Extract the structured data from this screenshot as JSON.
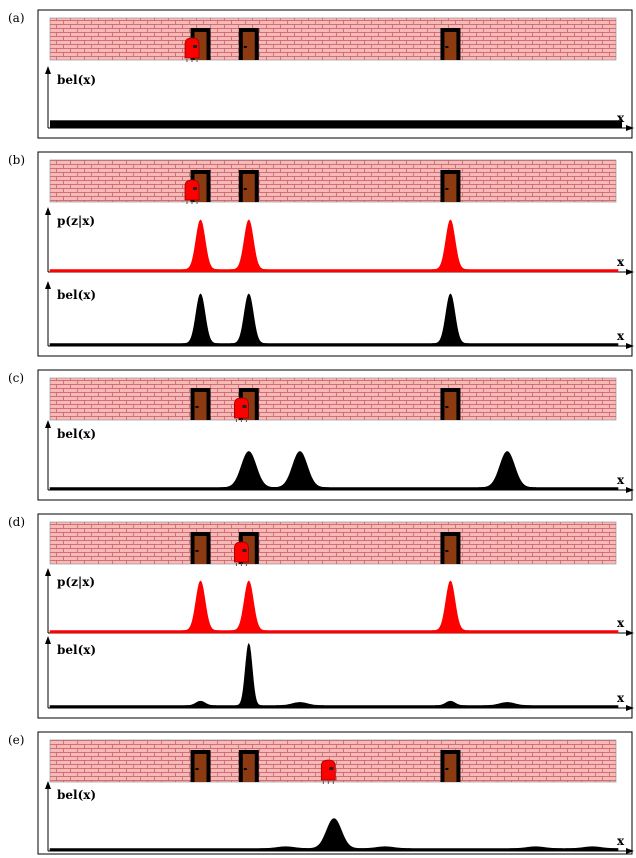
{
  "colors": {
    "wall_fill": "#f6b8b8",
    "brick_line": "#c25a5a",
    "door_frame": "#000000",
    "door_fill": "#8b3a12",
    "robot": "#ff0000",
    "measurement_curve": "#ff0000",
    "belief_curve": "#000000"
  },
  "doors": [
    0.265,
    0.35,
    0.705
  ],
  "panels": [
    {
      "label": "(a)",
      "robot": {
        "position": 0.25
      },
      "plots": [
        {
          "title": "bel(x)",
          "x_label": "x",
          "type": "uniform",
          "thickness": 0.55,
          "color": "#000000"
        }
      ]
    },
    {
      "label": "(b)",
      "robot": {
        "position": 0.25
      },
      "plots": [
        {
          "title": "p(z|x)",
          "x_label": "x",
          "type": "peaks",
          "color": "#ff0000",
          "peaks": [
            {
              "x": 0.265,
              "h": 0.9,
              "w": 0.008
            },
            {
              "x": 0.35,
              "h": 0.9,
              "w": 0.008
            },
            {
              "x": 0.705,
              "h": 0.9,
              "w": 0.008
            }
          ]
        },
        {
          "title": "bel(x)",
          "x_label": "x",
          "type": "peaks",
          "color": "#000000",
          "peaks": [
            {
              "x": 0.265,
              "h": 0.9,
              "w": 0.008
            },
            {
              "x": 0.35,
              "h": 0.9,
              "w": 0.008
            },
            {
              "x": 0.705,
              "h": 0.9,
              "w": 0.008
            }
          ]
        }
      ]
    },
    {
      "label": "(c)",
      "robot": {
        "position": 0.337
      },
      "plots": [
        {
          "title": "bel(x)",
          "x_label": "x",
          "type": "peaks",
          "color": "#000000",
          "peaks": [
            {
              "x": 0.35,
              "h": 0.6,
              "w": 0.013
            },
            {
              "x": 0.44,
              "h": 0.6,
              "w": 0.013
            },
            {
              "x": 0.805,
              "h": 0.6,
              "w": 0.013
            }
          ]
        }
      ]
    },
    {
      "label": "(d)",
      "robot": {
        "position": 0.337
      },
      "plots": [
        {
          "title": "p(z|x)",
          "x_label": "x",
          "type": "peaks",
          "color": "#ff0000",
          "peaks": [
            {
              "x": 0.265,
              "h": 0.9,
              "w": 0.008
            },
            {
              "x": 0.35,
              "h": 0.9,
              "w": 0.008
            },
            {
              "x": 0.705,
              "h": 0.9,
              "w": 0.008
            }
          ]
        },
        {
          "title": "bel(x)",
          "x_label": "x",
          "type": "peaks",
          "color": "#000000",
          "peaks": [
            {
              "x": 0.265,
              "h": 0.07,
              "w": 0.008
            },
            {
              "x": 0.35,
              "h": 1.0,
              "w": 0.006
            },
            {
              "x": 0.44,
              "h": 0.05,
              "w": 0.013
            },
            {
              "x": 0.705,
              "h": 0.07,
              "w": 0.008
            },
            {
              "x": 0.805,
              "h": 0.05,
              "w": 0.013
            }
          ]
        }
      ]
    },
    {
      "label": "(e)",
      "robot": {
        "position": 0.49
      },
      "plots": [
        {
          "title": "bel(x)",
          "x_label": "x",
          "type": "peaks",
          "color": "#000000",
          "peaks": [
            {
              "x": 0.415,
              "h": 0.03,
              "w": 0.015
            },
            {
              "x": 0.5,
              "h": 0.5,
              "w": 0.013
            },
            {
              "x": 0.59,
              "h": 0.03,
              "w": 0.015
            },
            {
              "x": 0.855,
              "h": 0.03,
              "w": 0.015
            },
            {
              "x": 0.955,
              "h": 0.03,
              "w": 0.015
            }
          ]
        }
      ]
    }
  ]
}
